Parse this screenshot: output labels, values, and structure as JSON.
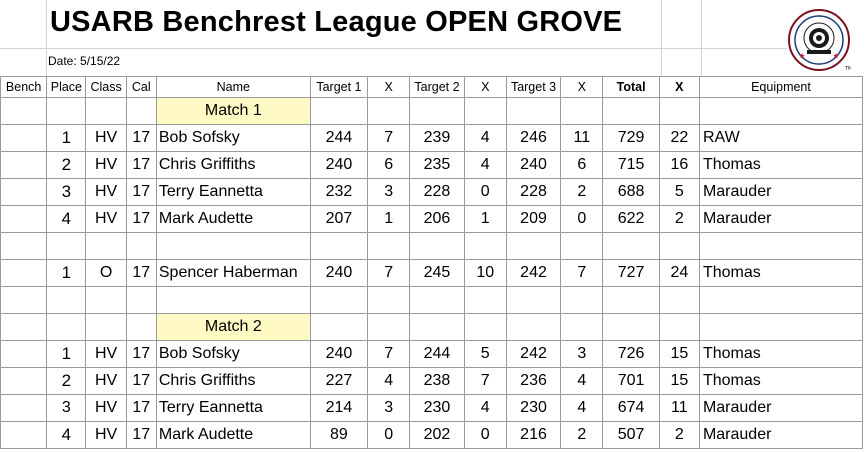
{
  "header": {
    "title": "USARB Benchrest League OPEN GROVE",
    "date": "Date: 5/15/22"
  },
  "logo": {
    "icon": "usarb-target-logo",
    "text": "TM",
    "accent": "#c8102e"
  },
  "columns": {
    "bench": "Bench",
    "place": "Place",
    "class": "Class",
    "cal": "Cal",
    "name": "Name",
    "t1": "Target 1",
    "x1": "X",
    "t2": "Target 2",
    "x2": "X",
    "t3": "Target 3",
    "x3": "X",
    "total": "Total",
    "xt": "X",
    "equipment": "Equipment"
  },
  "match1": {
    "label": "Match 1",
    "rows": [
      {
        "place": "1",
        "class": "HV",
        "cal": "17",
        "name": "Bob Sofsky",
        "t1": "244",
        "x1": "7",
        "t2": "239",
        "x2": "4",
        "t3": "246",
        "x3": "11",
        "total": "729",
        "xt": "22",
        "equipment": "RAW"
      },
      {
        "place": "2",
        "class": "HV",
        "cal": "17",
        "name": "Chris Griffiths",
        "t1": "240",
        "x1": "6",
        "t2": "235",
        "x2": "4",
        "t3": "240",
        "x3": "6",
        "total": "715",
        "xt": "16",
        "equipment": "Thomas"
      },
      {
        "place": "3",
        "class": "HV",
        "cal": "17",
        "name": "Terry Eannetta",
        "t1": "232",
        "x1": "3",
        "t2": "228",
        "x2": "0",
        "t3": "228",
        "x3": "2",
        "total": "688",
        "xt": "5",
        "equipment": "Marauder"
      },
      {
        "place": "4",
        "class": "HV",
        "cal": "17",
        "name": "Mark Audette",
        "t1": "207",
        "x1": "1",
        "t2": "206",
        "x2": "1",
        "t3": "209",
        "x3": "0",
        "total": "622",
        "xt": "2",
        "equipment": "Marauder"
      }
    ],
    "open_row": {
      "place": "1",
      "class": "O",
      "cal": "17",
      "name": "Spencer Haberman",
      "t1": "240",
      "x1": "7",
      "t2": "245",
      "x2": "10",
      "t3": "242",
      "x3": "7",
      "total": "727",
      "xt": "24",
      "equipment": "Thomas"
    }
  },
  "match2": {
    "label": "Match 2",
    "rows": [
      {
        "place": "1",
        "class": "HV",
        "cal": "17",
        "name": "Bob Sofsky",
        "t1": "240",
        "x1": "7",
        "t2": "244",
        "x2": "5",
        "t3": "242",
        "x3": "3",
        "total": "726",
        "xt": "15",
        "equipment": "Thomas"
      },
      {
        "place": "2",
        "class": "HV",
        "cal": "17",
        "name": "Chris Griffiths",
        "t1": "227",
        "x1": "4",
        "t2": "238",
        "x2": "7",
        "t3": "236",
        "x3": "4",
        "total": "701",
        "xt": "15",
        "equipment": "Thomas"
      },
      {
        "place": "3",
        "class": "HV",
        "cal": "17",
        "name": "Terry Eannetta",
        "t1": "214",
        "x1": "3",
        "t2": "230",
        "x2": "4",
        "t3": "230",
        "x3": "4",
        "total": "674",
        "xt": "11",
        "equipment": "Marauder"
      },
      {
        "place": "4",
        "class": "HV",
        "cal": "17",
        "name": "Mark Audette",
        "t1": "89",
        "x1": "0",
        "t2": "202",
        "x2": "0",
        "t3": "216",
        "x3": "2",
        "total": "507",
        "xt": "2",
        "equipment": "Marauder"
      }
    ]
  }
}
